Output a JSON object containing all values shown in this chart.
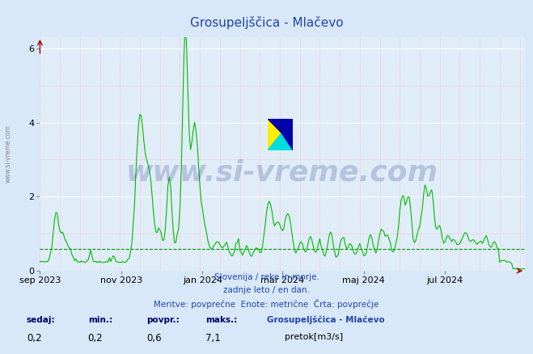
{
  "title": "Grosupeljščica - Mlačevo",
  "title_color": "#2244aa",
  "bg_color": "#d8e8f8",
  "plot_bg_color": "#e0ecf8",
  "line_color": "#00bb00",
  "avg_line_color": "#009900",
  "avg_value": 0.6,
  "ylim": [
    0,
    6.3
  ],
  "yticks": [
    0,
    2,
    4,
    6
  ],
  "text_color": "#2244aa",
  "watermark": "www.si-vreme.com",
  "watermark_color": "#1a3a8a",
  "watermark_alpha": 0.22,
  "subtitle1": "Slovenija / reke in morje.",
  "subtitle2": "zadnje leto / en dan.",
  "subtitle3": "Meritve: povprečne  Enote: metrične  Črta: povprečje",
  "legend_title": "Grosupeljščica - Mlačevo",
  "legend_label": "pretok[m3/s]",
  "stats_labels": [
    "sedaj:",
    "min.:",
    "povpr.:",
    "maks.:"
  ],
  "stats_values": [
    "0,2",
    "0,2",
    "0,6",
    "7,1"
  ],
  "xtick_labels": [
    "sep 2023",
    "nov 2023",
    "jan 2024",
    "mar 2024",
    "maj 2024",
    "jul 2024"
  ],
  "xtick_positions": [
    0,
    61,
    122,
    182,
    243,
    304
  ],
  "total_points": 365,
  "arrow_color": "#aa0000",
  "grid_red": "#ffaaaa",
  "grid_white": "#ffffff",
  "ylabel_text": "www.si-vreme.com"
}
